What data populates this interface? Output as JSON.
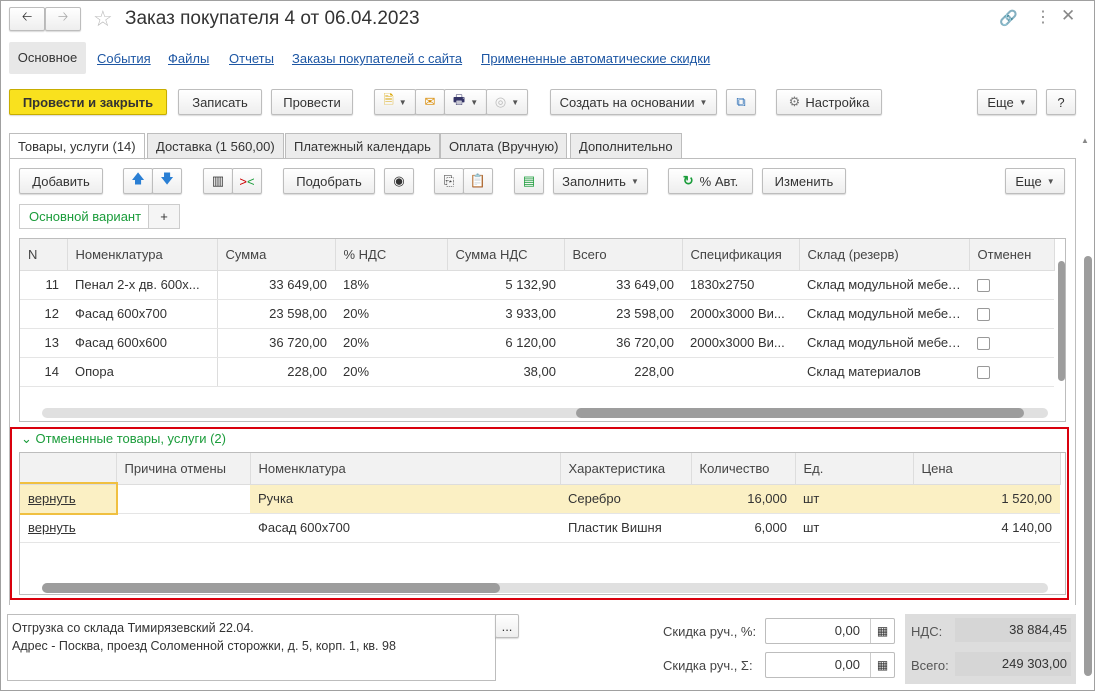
{
  "window": {
    "title": "Заказ покупателя 4 от 06.04.2023",
    "back_icon": "arrow-left-icon",
    "forward_icon": "arrow-right-icon",
    "star_icon": "star-icon",
    "link_icon": "link-icon",
    "menu_icon": "kebab-icon",
    "close_icon": "close-icon"
  },
  "nav": [
    "Основное",
    "События",
    "Файлы",
    "Отчеты",
    "Заказы покупателей с сайта",
    "Примененные автоматические скидки"
  ],
  "toolbar": {
    "post_close": "Провести и закрыть",
    "save": "Записать",
    "post": "Провести",
    "create_based": "Создать на основании",
    "settings": "Настройка",
    "more": "Еще",
    "help": "?"
  },
  "tabs": [
    "Товары, услуги (14)",
    "Доставка (1 560,00)",
    "Платежный календарь",
    "Оплата (Вручную)",
    "Дополнительно"
  ],
  "items_toolbar": {
    "add": "Добавить",
    "pick": "Подобрать",
    "fill": "Заполнить",
    "auto_pct": "% Авт.",
    "change": "Изменить",
    "more": "Еще"
  },
  "variant": {
    "label": "Основной вариант",
    "add": "+"
  },
  "items_table": {
    "columns": [
      "N",
      "Номенклатура",
      "Сумма",
      "% НДС",
      "Сумма НДС",
      "Всего",
      "Спецификация",
      "Склад (резерв)",
      "Отменен"
    ],
    "rows": [
      [
        "11",
        "Пенал 2-х дв. 600х...",
        "33 649,00",
        "18%",
        "5 132,90",
        "33 649,00",
        "1830х2750",
        "Склад модульной мебели",
        false
      ],
      [
        "12",
        "Фасад 600х700",
        "23 598,00",
        "20%",
        "3 933,00",
        "23 598,00",
        "2000х3000 Ви...",
        "Склад модульной мебели",
        false
      ],
      [
        "13",
        "Фасад 600х600",
        "36 720,00",
        "20%",
        "6 120,00",
        "36 720,00",
        "2000х3000 Ви...",
        "Склад модульной мебели",
        false
      ],
      [
        "14",
        "Опора",
        "228,00",
        "20%",
        "38,00",
        "228,00",
        "",
        "Склад материалов",
        false
      ]
    ]
  },
  "cancelled": {
    "title": "Отмененные товары, услуги (2)",
    "columns": [
      "",
      "Причина отмены",
      "Номенклатура",
      "Характеристика",
      "Количество",
      "Ед.",
      "Цена"
    ],
    "rows": [
      [
        "вернуть",
        "",
        "Ручка",
        "Серебро",
        "16,000",
        "шт",
        "1 520,00"
      ],
      [
        "вернуть",
        "",
        "Фасад 600х700",
        "Пластик Вишня",
        "6,000",
        "шт",
        "4 140,00"
      ]
    ]
  },
  "comment": {
    "line1": "Отгрузка со склада Тимирязевский 22.04.",
    "line2": "Адрес - Посква, проезд Соломенной сторожки, д. 5, корп. 1, кв. 98",
    "button": "..."
  },
  "totals": {
    "disc_pct_label": "Скидка руч., %:",
    "disc_pct": "0,00",
    "disc_sum_label": "Скидка руч., Σ:",
    "disc_sum": "0,00",
    "vat_label": "НДС:",
    "vat": "38 884,45",
    "total_label": "Всего:",
    "total": "249 303,00"
  },
  "colors": {
    "primary": "#f9e11e",
    "link": "#1e57a4",
    "green": "#1a9c3a",
    "highlight_border": "#d9000d",
    "selected_row": "#fbf0c4"
  }
}
